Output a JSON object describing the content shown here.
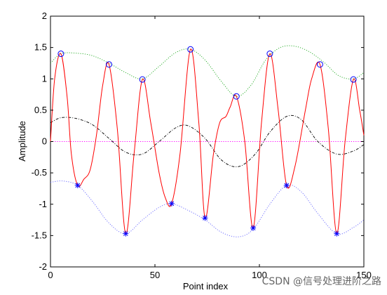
{
  "chart_data": {
    "type": "line",
    "title": "",
    "xlabel": "Point index",
    "ylabel": "Amplitude",
    "xlim": [
      0,
      150
    ],
    "ylim": [
      -2,
      2
    ],
    "xticks": [
      0,
      50,
      100,
      150
    ],
    "yticks": [
      -2,
      -1.5,
      -1,
      -0.5,
      0,
      0.5,
      1,
      1.5,
      2
    ],
    "ytick_labels": [
      "-2",
      "-1.5",
      "-1",
      "-0.5",
      "0",
      "0.5",
      "1",
      "1.5",
      "2"
    ],
    "grid": false,
    "legend": "none",
    "series": [
      {
        "style": "solid",
        "color": "#ff0000",
        "x": [
          0,
          2,
          5,
          8,
          10,
          13,
          16,
          19,
          22,
          25,
          28,
          32,
          36,
          40,
          44,
          48,
          52,
          55,
          58,
          62,
          67,
          71,
          74,
          78,
          81,
          84,
          86,
          89,
          93,
          97,
          101,
          105,
          109,
          113,
          117,
          122,
          125,
          129,
          133,
          137,
          141,
          145,
          148,
          150
        ],
        "values": [
          0.0,
          1.0,
          1.4,
          0.7,
          -0.2,
          -0.7,
          -0.6,
          -0.45,
          0.1,
          0.9,
          1.23,
          0.2,
          -1.47,
          -0.2,
          0.99,
          0.3,
          -0.5,
          -0.9,
          -0.99,
          -0.2,
          1.47,
          0.3,
          -1.22,
          -0.2,
          0.3,
          0.4,
          0.55,
          0.72,
          0.0,
          -1.38,
          0.3,
          1.4,
          0.5,
          -0.7,
          -0.4,
          0.5,
          1.0,
          1.23,
          0.2,
          -1.47,
          0.0,
          0.99,
          0.5,
          0.1
        ]
      },
      {
        "style": "dotted",
        "color": "#22aa22",
        "x": [
          0,
          5,
          12,
          20,
          28,
          36,
          44,
          52,
          60,
          67,
          74,
          82,
          89,
          96,
          103,
          110,
          117,
          124,
          131,
          138,
          145,
          150
        ],
        "values": [
          1.25,
          1.4,
          1.41,
          1.37,
          1.25,
          1.1,
          1.0,
          1.2,
          1.42,
          1.47,
          1.3,
          0.95,
          0.72,
          0.9,
          1.3,
          1.5,
          1.52,
          1.43,
          1.26,
          1.05,
          1.0,
          1.1
        ]
      },
      {
        "style": "dotted",
        "color": "#6666ff",
        "x": [
          0,
          6,
          13,
          20,
          28,
          36,
          44,
          52,
          58,
          66,
          74,
          82,
          90,
          97,
          105,
          113,
          120,
          128,
          137,
          145,
          150
        ],
        "values": [
          -0.65,
          -0.63,
          -0.7,
          -0.95,
          -1.3,
          -1.47,
          -1.25,
          -1.05,
          -0.99,
          -1.1,
          -1.25,
          -1.45,
          -1.52,
          -1.4,
          -1.0,
          -0.7,
          -0.8,
          -1.15,
          -1.47,
          -1.37,
          -1.25
        ]
      },
      {
        "style": "dashdot",
        "color": "#000000",
        "x": [
          0,
          5,
          12,
          20,
          28,
          36,
          44,
          52,
          60,
          66,
          74,
          82,
          90,
          98,
          105,
          113,
          120,
          128,
          137,
          145,
          150
        ],
        "values": [
          0.3,
          0.38,
          0.37,
          0.27,
          0.05,
          -0.17,
          -0.2,
          0.0,
          0.22,
          0.25,
          0.05,
          -0.3,
          -0.4,
          -0.2,
          0.15,
          0.4,
          0.35,
          0.0,
          -0.2,
          -0.15,
          -0.05
        ]
      },
      {
        "style": "dotted",
        "color": "#ff00ff",
        "x": [
          0,
          150
        ],
        "values": [
          0,
          0
        ]
      }
    ],
    "maxima_markers": {
      "marker": "circle",
      "color": "#0000ff",
      "x": [
        5,
        28,
        44,
        67,
        89,
        105,
        129,
        145
      ],
      "values": [
        1.4,
        1.23,
        0.99,
        1.47,
        0.72,
        1.4,
        1.23,
        0.99
      ]
    },
    "minima_markers": {
      "marker": "asterisk",
      "color": "#0000ff",
      "x": [
        13,
        36,
        58,
        74,
        97,
        113,
        137
      ],
      "values": [
        -0.7,
        -1.47,
        -0.99,
        -1.22,
        -1.38,
        -0.7,
        -1.47
      ]
    }
  },
  "watermark": "CSDN @信号处理进阶之路"
}
